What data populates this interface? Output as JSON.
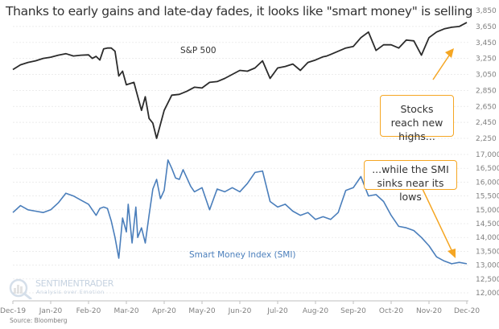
{
  "title": "Thanks to early gains and late-day fades, it looks like \"smart money\" is selling",
  "source": "Source: Bloomberg",
  "logo": {
    "brand": "SENTIMENTRADER",
    "tagline": "Analysis over Emotion"
  },
  "callouts": {
    "top": "Stocks reach new highs...",
    "bottom": "...while the SMI sinks near its lows"
  },
  "colors": {
    "sp500": "#2b2b2b",
    "smi": "#4a7ebb",
    "callout": "#f5a623",
    "grid": "#e6e6e6",
    "tick": "#808080"
  },
  "chart_data": [
    {
      "type": "line",
      "title": "S&P 500",
      "series_label": "S&P 500",
      "ylabel": "",
      "ylim": [
        2250,
        3850
      ],
      "yticks": [
        "3,850",
        "3,650",
        "3,450",
        "3,250",
        "3,050",
        "2,850",
        "2,650",
        "2,450",
        "2,250"
      ],
      "ytick_values": [
        3850,
        3650,
        3450,
        3250,
        3050,
        2850,
        2650,
        2450,
        2250
      ],
      "x": [
        0,
        0.2,
        0.4,
        0.6,
        0.8,
        1.0,
        1.2,
        1.4,
        1.6,
        1.8,
        2.0,
        2.1,
        2.2,
        2.3,
        2.4,
        2.5,
        2.6,
        2.7,
        2.8,
        2.9,
        3.0,
        3.2,
        3.4,
        3.5,
        3.6,
        3.7,
        3.8,
        4.0,
        4.2,
        4.4,
        4.6,
        4.8,
        5.0,
        5.2,
        5.4,
        5.6,
        5.8,
        6.0,
        6.2,
        6.4,
        6.6,
        6.8,
        7.0,
        7.2,
        7.4,
        7.6,
        7.8,
        8.0,
        8.1,
        8.2,
        8.3,
        8.4,
        8.6,
        8.8,
        9.0,
        9.2,
        9.4,
        9.6,
        9.8,
        10.0,
        10.2,
        10.4,
        10.6,
        10.8,
        11.0,
        11.2,
        11.4,
        11.6,
        11.8,
        12.0
      ],
      "values": [
        3110,
        3170,
        3200,
        3220,
        3250,
        3265,
        3290,
        3310,
        3280,
        3290,
        3295,
        3250,
        3275,
        3230,
        3370,
        3380,
        3380,
        3340,
        3030,
        3090,
        2920,
        2950,
        2600,
        2770,
        2500,
        2440,
        2250,
        2600,
        2790,
        2800,
        2840,
        2890,
        2880,
        2950,
        2960,
        3000,
        3050,
        3100,
        3090,
        3130,
        3220,
        3000,
        3130,
        3150,
        3180,
        3100,
        3200,
        3230,
        3250,
        3270,
        3280,
        3300,
        3340,
        3380,
        3400,
        3510,
        3580,
        3350,
        3420,
        3420,
        3380,
        3480,
        3470,
        3290,
        3510,
        3580,
        3620,
        3640,
        3650,
        3700
      ],
      "xlim": [
        0,
        12
      ],
      "xticks": [
        "Dec-19",
        "Jan-20",
        "Feb-20",
        "Mar-20",
        "Apr-20",
        "May-20",
        "Jun-20",
        "Jul-20",
        "Aug-20",
        "Sep-20",
        "Oct-20",
        "Nov-20",
        "Dec-20"
      ],
      "grid": true
    },
    {
      "type": "line",
      "title": "Smart Money Index (SMI)",
      "series_label": "Smart Money Index (SMI)",
      "ylabel": "",
      "ylim": [
        12000,
        17000
      ],
      "yticks": [
        "17,000",
        "16,500",
        "16,000",
        "15,500",
        "15,000",
        "14,500",
        "14,000",
        "13,500",
        "13,000",
        "12,500",
        "12,000"
      ],
      "ytick_values": [
        17000,
        16500,
        16000,
        15500,
        15000,
        14500,
        14000,
        13500,
        13000,
        12500,
        12000
      ],
      "x": [
        0,
        0.2,
        0.4,
        0.6,
        0.8,
        1.0,
        1.2,
        1.4,
        1.6,
        1.8,
        2.0,
        2.1,
        2.2,
        2.3,
        2.4,
        2.5,
        2.6,
        2.7,
        2.8,
        2.9,
        3.0,
        3.05,
        3.15,
        3.25,
        3.3,
        3.4,
        3.5,
        3.6,
        3.7,
        3.8,
        3.9,
        4.0,
        4.1,
        4.2,
        4.3,
        4.4,
        4.5,
        4.6,
        4.7,
        4.8,
        5.0,
        5.2,
        5.4,
        5.6,
        5.8,
        6.0,
        6.2,
        6.4,
        6.6,
        6.8,
        7.0,
        7.2,
        7.4,
        7.6,
        7.8,
        8.0,
        8.2,
        8.4,
        8.6,
        8.8,
        9.0,
        9.2,
        9.4,
        9.6,
        9.8,
        10.0,
        10.2,
        10.4,
        10.6,
        10.8,
        11.0,
        11.2,
        11.4,
        11.6,
        11.8,
        12.0
      ],
      "values": [
        14900,
        15150,
        15000,
        14950,
        14900,
        15000,
        15250,
        15600,
        15500,
        15350,
        15200,
        15000,
        14800,
        15050,
        15100,
        15050,
        14600,
        14000,
        13250,
        14700,
        14200,
        15200,
        13800,
        15100,
        14000,
        14350,
        13800,
        14800,
        15750,
        16100,
        15400,
        15700,
        16800,
        16500,
        16150,
        16100,
        16450,
        16150,
        15850,
        15650,
        15800,
        15000,
        15750,
        15650,
        15800,
        15650,
        15950,
        16350,
        16400,
        15300,
        15100,
        15200,
        14950,
        14800,
        14900,
        14650,
        14750,
        14650,
        14900,
        15700,
        15800,
        16200,
        15500,
        15550,
        15300,
        14800,
        14400,
        14350,
        14250,
        14000,
        13700,
        13300,
        13150,
        13050,
        13100,
        13050
      ],
      "xlim": [
        0,
        12
      ],
      "xticks": [
        "Dec-19",
        "Jan-20",
        "Feb-20",
        "Mar-20",
        "Apr-20",
        "May-20",
        "Jun-20",
        "Jul-20",
        "Aug-20",
        "Sep-20",
        "Oct-20",
        "Nov-20",
        "Dec-20"
      ],
      "grid": true
    }
  ]
}
